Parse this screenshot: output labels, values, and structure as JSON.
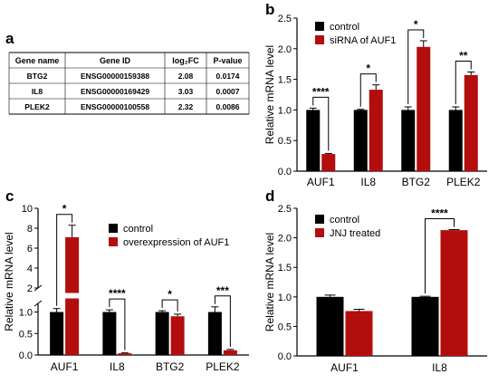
{
  "panel_letters": [
    "a",
    "b",
    "c",
    "d"
  ],
  "colors": {
    "control": "#000000",
    "treated": "#b30d0d"
  },
  "table": {
    "headers": [
      "Gene name",
      "Gene ID",
      "log₂FC",
      "P-value"
    ],
    "rows": [
      [
        "BTG2",
        "ENSG00000159388",
        "2.08",
        "0.0174"
      ],
      [
        "IL8",
        "ENSG00000169429",
        "3.03",
        "0.0007"
      ],
      [
        "PLEK2",
        "ENSG00000100558",
        "2.32",
        "0.0086"
      ]
    ]
  },
  "chart_data": [
    {
      "panel": "b",
      "type": "bar",
      "categories": [
        "AUF1",
        "IL8",
        "BTG2",
        "PLEK2"
      ],
      "series": [
        {
          "name": "control",
          "values": [
            1.0,
            1.0,
            1.0,
            1.0
          ],
          "errors": [
            0.03,
            0.01,
            0.05,
            0.05
          ]
        },
        {
          "name": "siRNA of AUF1",
          "values": [
            0.28,
            1.33,
            2.03,
            1.57
          ],
          "errors": [
            0.01,
            0.08,
            0.1,
            0.05
          ]
        }
      ],
      "significance": [
        "****",
        "*",
        "*",
        "**"
      ],
      "xlabel": "",
      "ylabel": "Relative mRNA level",
      "ylim": [
        0,
        2.5
      ],
      "yticks": [
        "0.0",
        "0.5",
        "1.0",
        "1.5",
        "2.0",
        "2.5"
      ],
      "legend_position": "top-left",
      "grid": false
    },
    {
      "panel": "c",
      "type": "bar",
      "axis_break": true,
      "categories": [
        "AUF1",
        "IL8",
        "BTG2",
        "PLEK2"
      ],
      "series": [
        {
          "name": "control",
          "values": [
            1.0,
            1.0,
            1.0,
            1.0
          ],
          "errors": [
            0.08,
            0.05,
            0.03,
            0.12
          ]
        },
        {
          "name": "overexpression of AUF1",
          "values": [
            7.1,
            0.04,
            0.9,
            0.11
          ],
          "errors": [
            1.2,
            0.01,
            0.05,
            0.02
          ]
        }
      ],
      "significance": [
        "*",
        "****",
        "*",
        "***"
      ],
      "xlabel": "",
      "ylabel": "Relative mRNA level",
      "lower_ylim": [
        0,
        1.2
      ],
      "lower_yticks": [
        "0.0",
        "0.5",
        "1.0"
      ],
      "upper_ylim": [
        2,
        10
      ],
      "upper_yticks": [
        "2",
        "4",
        "6",
        "8",
        "10"
      ],
      "legend_position": "top-right",
      "grid": false
    },
    {
      "panel": "d",
      "type": "bar",
      "categories": [
        "AUF1",
        "IL8"
      ],
      "series": [
        {
          "name": "control",
          "values": [
            1.0,
            1.0
          ],
          "errors": [
            0.03,
            0.01
          ]
        },
        {
          "name": "JNJ treated",
          "values": [
            0.76,
            2.13
          ],
          "errors": [
            0.03,
            0.01
          ]
        }
      ],
      "significance": [
        "",
        "****"
      ],
      "xlabel": "",
      "ylabel": "Relative mRNA level",
      "ylim": [
        0,
        2.5
      ],
      "yticks": [
        "0.0",
        "0.5",
        "1.0",
        "1.5",
        "2.0",
        "2.5"
      ],
      "legend_position": "top-left",
      "grid": false
    }
  ]
}
